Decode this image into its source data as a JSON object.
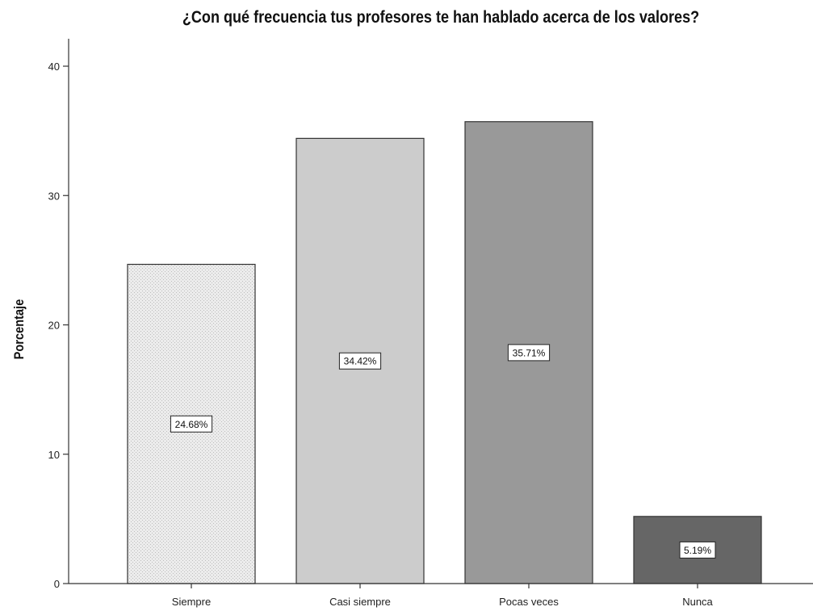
{
  "chart_data": {
    "type": "bar",
    "title": "¿Con qué frecuencia tus profesores te han hablado acerca de los valores?",
    "xlabel": "",
    "ylabel": "Porcentaje",
    "categories": [
      "Siempre",
      "Casi siempre",
      "Pocas veces",
      "Nunca"
    ],
    "values": [
      24.68,
      34.42,
      35.71,
      5.19
    ],
    "data_labels": [
      "24.68%",
      "34.42%",
      "35.71%",
      "5.19%"
    ],
    "bar_colors": [
      "#e8e8e8",
      "#cccccc",
      "#999999",
      "#666666"
    ],
    "ylim": [
      0,
      42
    ],
    "yticks": [
      0,
      10,
      20,
      30,
      40
    ],
    "grid": false,
    "legend": "none"
  }
}
